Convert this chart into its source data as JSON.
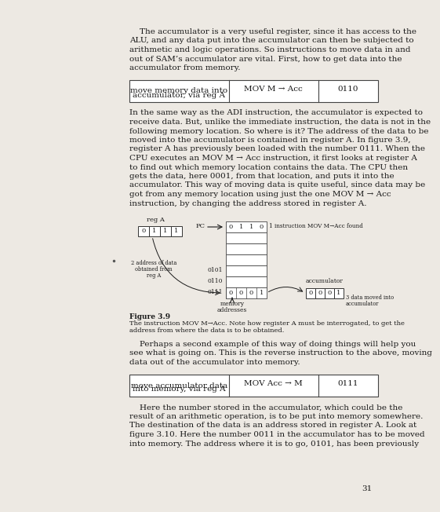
{
  "page_bg": "#ede9e3",
  "text_color": "#1a1a1a",
  "page_number": "31",
  "top_paragraph_lines": [
    "    The accumulator is a very useful register, since it has access to the",
    "ALU, and any data put into the accumulator can then be subjected to",
    "arithmetic and logic operations. So instructions to move data in and",
    "out of SAM’s accumulator are vital. First, how to get data into the",
    "accumulator from memory."
  ],
  "table1_col1_line1": "move memory data into",
  "table1_col1_line2": "accumulator, via reg A",
  "table1_col2": "MOV M → Acc",
  "table1_col3": "0110",
  "mid_paragraph_lines": [
    "In the same way as the ADI instruction, the accumulator is expected to",
    "receive data. But, unlike the immediate instruction, the data is not in the",
    "following memory location. So where is it? The address of the data to be",
    "moved into the accumulator is contained in register A. In figure 3.9,",
    "register A has previously been loaded with the number 0111. When the",
    "CPU executes an MOV M → Acc instruction, it first looks at register A",
    "to find out which memory location contains the data. The CPU then",
    "gets the data, here 0001, from that location, and puts it into the",
    "accumulator. This way of moving data is quite useful, since data may be",
    "got from any memory location using just the one MOV M → Acc",
    "instruction, by changing the address stored in register A."
  ],
  "mid_italic_line_idx": 9,
  "mid_italic_word": "any",
  "fig_caption_bold": "Figure 3.9",
  "fig_caption_lines": [
    "The instruction MOV M→Acc. Note how register A must be interrogated, to get the",
    "address from where the data is to be obtained."
  ],
  "bottom_paragraph_lines": [
    "    Perhaps a second example of this way of doing things will help you",
    "see what is going on. This is the reverse instruction to the above, moving",
    "data out of the accumulator into memory."
  ],
  "table2_col1_line1": "move accumulator data",
  "table2_col1_line2": "into memory, via reg A",
  "table2_col2": "MOV Acc → M",
  "table2_col3": "0111",
  "last_paragraph_lines": [
    "    Here the number stored in the accumulator, which could be the",
    "result of an arithmetic operation, is to be put into memory somewhere.",
    "The destination of the data is an address stored in register A. Look at",
    "figure 3.10. Here the number 0011 in the accumulator has to be moved",
    "into memory. The address where it is to go, 0101, has been previously"
  ],
  "reg_a_bits": [
    "0",
    "1",
    "1",
    "1"
  ],
  "pc_row_bits": [
    "0",
    "1",
    "1",
    "0"
  ],
  "pc_row_label": "1 instruction MOV M→Acc found",
  "mem_addr_labels": [
    "0101",
    "0110",
    "0111"
  ],
  "mem_data_bits": [
    "0",
    "0",
    "0",
    "1"
  ],
  "mem_label_line1": "memory",
  "mem_label_line2": "addresses",
  "acc_label": "accumulator",
  "acc_bits": [
    "0",
    "0",
    "0",
    "1"
  ],
  "label2_lines": [
    "2 address of data",
    "obtained from",
    "reg A"
  ],
  "label3_lines": [
    "3 data moved into",
    "accumulator"
  ]
}
